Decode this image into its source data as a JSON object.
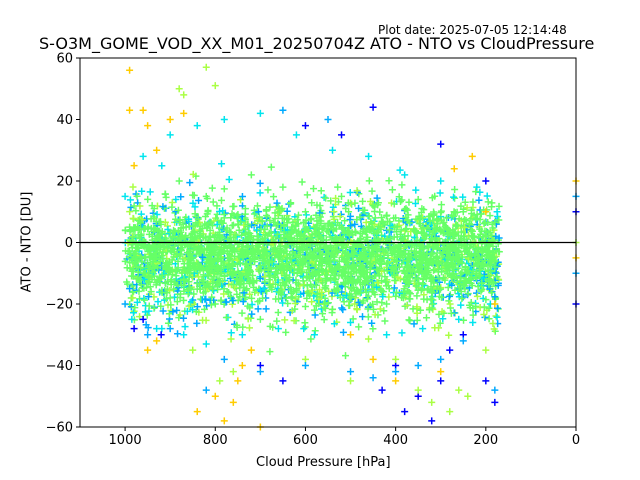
{
  "header": {
    "plot_date": "Plot date: 2025-07-05 12:14:48",
    "title": "S-O3M_GOME_VOD_XX_M01_20250704Z ATO - NTO vs CloudPressure"
  },
  "chart_data": {
    "type": "scatter",
    "title": "S-O3M_GOME_VOD_XX_M01_20250704Z ATO - NTO vs CloudPressure",
    "xlabel": "Cloud Pressure [hPa]",
    "ylabel": "ATO - NTO [DU]",
    "xlim": [
      1100,
      0
    ],
    "ylim": [
      -60,
      60
    ],
    "x_inverted": true,
    "xticks": [
      1000,
      800,
      600,
      400,
      200,
      0
    ],
    "yticks": [
      60,
      40,
      20,
      0,
      -20,
      -40,
      -60
    ],
    "xtick_labels": [
      "1000",
      "800",
      "600",
      "400",
      "200",
      "0"
    ],
    "ytick_labels": [
      "60",
      "40",
      "20",
      "0",
      "−20",
      "−40",
      "−60"
    ],
    "reference_line": {
      "y": 0,
      "color": "#000000"
    },
    "marker": "+",
    "grid": false,
    "colors": [
      "#0000ff",
      "#00aaff",
      "#00e5ee",
      "#66ff66",
      "#aaff44",
      "#ffcc00"
    ],
    "series": [
      {
        "color": "#66ff66",
        "description": "dense core",
        "points": [
          [
            990,
            5
          ],
          [
            960,
            -10
          ],
          [
            940,
            12
          ],
          [
            900,
            -18
          ],
          [
            880,
            20
          ],
          [
            850,
            -5
          ],
          [
            820,
            15
          ],
          [
            800,
            -20
          ],
          [
            780,
            8
          ],
          [
            750,
            -12
          ],
          [
            720,
            22
          ],
          [
            700,
            -25
          ],
          [
            680,
            3
          ],
          [
            650,
            18
          ],
          [
            620,
            -15
          ],
          [
            600,
            10
          ],
          [
            580,
            -22
          ],
          [
            550,
            6
          ],
          [
            520,
            15
          ],
          [
            500,
            -18
          ],
          [
            480,
            0
          ],
          [
            450,
            12
          ],
          [
            420,
            -20
          ],
          [
            400,
            8
          ],
          [
            380,
            -10
          ],
          [
            350,
            14
          ],
          [
            320,
            -16
          ],
          [
            300,
            4
          ],
          [
            280,
            -8
          ],
          [
            250,
            10
          ],
          [
            230,
            -14
          ],
          [
            200,
            2
          ],
          [
            180,
            -6
          ],
          [
            170,
            -3
          ]
        ]
      },
      {
        "color": "#00e5ee",
        "description": "outer envelope",
        "points": [
          [
            1000,
            15
          ],
          [
            985,
            -25
          ],
          [
            960,
            28
          ],
          [
            930,
            -28
          ],
          [
            900,
            35
          ],
          [
            870,
            -30
          ],
          [
            840,
            38
          ],
          [
            820,
            -33
          ],
          [
            780,
            40
          ],
          [
            740,
            -30
          ],
          [
            700,
            42
          ],
          [
            660,
            -28
          ],
          [
            620,
            35
          ],
          [
            580,
            -30
          ],
          [
            540,
            30
          ],
          [
            500,
            -26
          ],
          [
            460,
            28
          ],
          [
            420,
            -30
          ],
          [
            380,
            22
          ],
          [
            340,
            -28
          ],
          [
            300,
            20
          ],
          [
            260,
            -25
          ],
          [
            220,
            18
          ],
          [
            190,
            -20
          ],
          [
            175,
            10
          ]
        ]
      },
      {
        "color": "#ffcc00",
        "description": "orange outliers",
        "points": [
          [
            990,
            56
          ],
          [
            990,
            43
          ],
          [
            960,
            43
          ],
          [
            950,
            38
          ],
          [
            930,
            30
          ],
          [
            900,
            40
          ],
          [
            870,
            42
          ],
          [
            840,
            -55
          ],
          [
            800,
            -50
          ],
          [
            780,
            -58
          ],
          [
            760,
            -52
          ],
          [
            750,
            -45
          ],
          [
            740,
            -40
          ],
          [
            720,
            -35
          ],
          [
            700,
            -60
          ],
          [
            980,
            25
          ],
          [
            950,
            -35
          ],
          [
            930,
            -32
          ],
          [
            500,
            -30
          ],
          [
            450,
            -38
          ],
          [
            400,
            -45
          ],
          [
            350,
            -50
          ],
          [
            300,
            -42
          ],
          [
            270,
            24
          ],
          [
            230,
            28
          ],
          [
            200,
            10
          ],
          [
            180,
            -20
          ],
          [
            0,
            20
          ],
          [
            0,
            -5
          ]
        ]
      },
      {
        "color": "#0000ff",
        "description": "blue outliers",
        "points": [
          [
            980,
            -28
          ],
          [
            960,
            -25
          ],
          [
            920,
            -30
          ],
          [
            700,
            -40
          ],
          [
            650,
            -45
          ],
          [
            600,
            38
          ],
          [
            520,
            35
          ],
          [
            450,
            44
          ],
          [
            430,
            -48
          ],
          [
            400,
            -40
          ],
          [
            380,
            -55
          ],
          [
            350,
            -50
          ],
          [
            320,
            -58
          ],
          [
            300,
            -45
          ],
          [
            280,
            -35
          ],
          [
            250,
            -30
          ],
          [
            200,
            -45
          ],
          [
            180,
            -52
          ],
          [
            300,
            32
          ],
          [
            200,
            20
          ],
          [
            0,
            -20
          ],
          [
            0,
            10
          ]
        ]
      },
      {
        "color": "#aaff44",
        "description": "light green outliers",
        "points": [
          [
            880,
            50
          ],
          [
            870,
            48
          ],
          [
            850,
            -35
          ],
          [
            820,
            57
          ],
          [
            800,
            51
          ],
          [
            790,
            -45
          ],
          [
            760,
            -42
          ],
          [
            600,
            -38
          ],
          [
            500,
            -45
          ],
          [
            400,
            -38
          ],
          [
            350,
            -48
          ],
          [
            320,
            -52
          ],
          [
            280,
            -55
          ],
          [
            260,
            -48
          ],
          [
            240,
            -50
          ],
          [
            200,
            -35
          ],
          [
            0,
            0
          ]
        ]
      },
      {
        "color": "#00aaff",
        "description": "cyan outliers",
        "points": [
          [
            1000,
            -20
          ],
          [
            990,
            -15
          ],
          [
            950,
            -30
          ],
          [
            900,
            -28
          ],
          [
            820,
            -48
          ],
          [
            780,
            -38
          ],
          [
            700,
            -42
          ],
          [
            650,
            43
          ],
          [
            600,
            -40
          ],
          [
            550,
            40
          ],
          [
            500,
            -42
          ],
          [
            450,
            -44
          ],
          [
            400,
            -42
          ],
          [
            350,
            -40
          ],
          [
            300,
            -38
          ],
          [
            250,
            -32
          ],
          [
            180,
            -48
          ],
          [
            0,
            15
          ],
          [
            0,
            -10
          ]
        ]
      }
    ]
  }
}
